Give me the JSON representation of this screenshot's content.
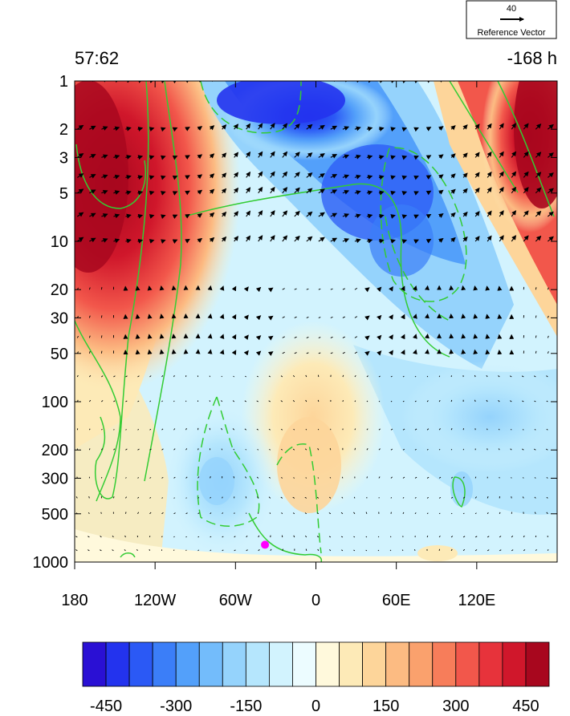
{
  "chart_data": {
    "type": "heatmap",
    "title_left": "57:62",
    "title_right": "-168 h",
    "reference_vector": {
      "magnitude": "40",
      "label": "Reference Vector"
    },
    "x_tick_labels": [
      "180",
      "120W",
      "60W",
      "0",
      "60E",
      "120E"
    ],
    "x_tick_values": [
      -180,
      -120,
      -60,
      0,
      60,
      120
    ],
    "xlim": [
      -180,
      180
    ],
    "y_tick_labels": [
      "1",
      "2",
      "3",
      "5",
      "10",
      "20",
      "30",
      "50",
      "100",
      "200",
      "300",
      "500",
      "1000"
    ],
    "y_tick_values": [
      1,
      2,
      3,
      5,
      10,
      20,
      30,
      50,
      100,
      200,
      300,
      500,
      1000
    ],
    "ylim": [
      1,
      1000
    ],
    "y_scale": "log-pressure (inverted)",
    "colorbar": {
      "levels": [
        -550,
        -500,
        -450,
        -400,
        -350,
        -300,
        -250,
        -200,
        -150,
        -100,
        -50,
        0,
        50,
        100,
        150,
        200,
        250,
        300,
        350,
        400,
        450,
        500,
        550
      ],
      "tick_labels": [
        "-450",
        "-300",
        "-150",
        "0",
        "150",
        "300",
        "450"
      ],
      "tick_values": [
        -450,
        -300,
        -150,
        0,
        150,
        300,
        450
      ],
      "colors": [
        "#2a10d4",
        "#2333ee",
        "#2b59f5",
        "#3b7ef8",
        "#53a0fa",
        "#73bcfb",
        "#95d3fc",
        "#b5e6fd",
        "#d2f3fe",
        "#ecfcff",
        "#fff9dc",
        "#fdeab7",
        "#fdd59a",
        "#fcbb82",
        "#faa16d",
        "#f77d5a",
        "#f2574b",
        "#e7333b",
        "#d0172b",
        "#a8071e"
      ]
    },
    "filled_field_samples": [
      {
        "x": -160,
        "p": 5,
        "value": 500
      },
      {
        "x": -150,
        "p": 2,
        "value": 450
      },
      {
        "x": -30,
        "p": 1,
        "value": -500
      },
      {
        "x": 30,
        "p": 5,
        "value": -450
      },
      {
        "x": 160,
        "p": 2,
        "value": 500
      },
      {
        "x": 0,
        "p": 250,
        "value": 150
      },
      {
        "x": -75,
        "p": 300,
        "value": -100
      },
      {
        "x": 90,
        "p": 200,
        "value": -100
      }
    ],
    "overlays": [
      "green solid/dashed contours",
      "wind vectors"
    ],
    "marker": {
      "x": -38,
      "p": 780,
      "color": "#ff00ff"
    }
  }
}
